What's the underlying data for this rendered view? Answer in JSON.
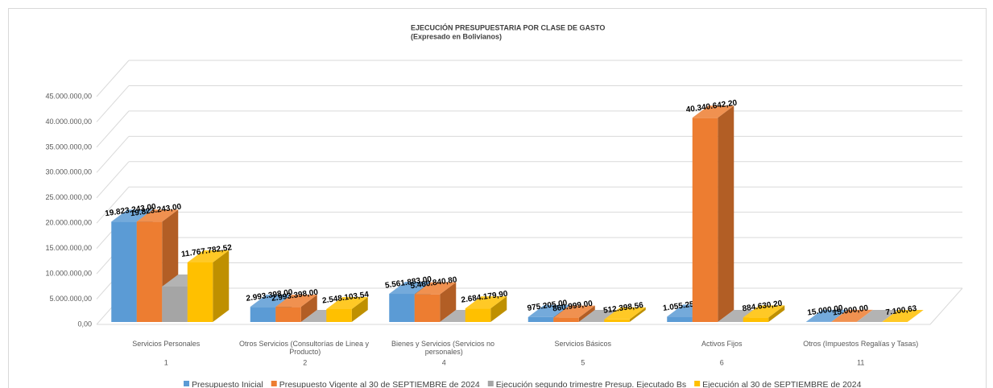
{
  "chart_data": {
    "type": "bar3d",
    "title": "EJECUCIÓN PRESUPUESTARIA POR CLASE DE GASTO",
    "subtitle": "(Expresado en Bolivianos)",
    "categories": [
      "Servicios Personales",
      "Otros Servicios (Consultorías de Linea y Producto)",
      "Bienes y Servicios (Servicios no personales)",
      "Servicios Básicos",
      "Activos Fijos",
      "Otros (Impuestos Regalías y Tasas)"
    ],
    "category_codes": [
      "1",
      "2",
      "4",
      "5",
      "6",
      "11"
    ],
    "series": [
      {
        "name": "Presupuesto Inicial",
        "color": "#5b9bd5",
        "values": [
          19823243.0,
          2993398.0,
          5561883.0,
          975205.0,
          1055255.0,
          15000.0
        ],
        "value_labels": [
          "19.823.243,00",
          "2.993.398,00",
          "5.561.883,00",
          "975.205,00",
          "1.055.255,00",
          "15.000,00"
        ]
      },
      {
        "name": "Presupuesto Vigente al 30 de SEPTIEMBRE de 2024",
        "color": "#ed7d31",
        "values": [
          19823243.0,
          2993398.0,
          5460840.8,
          860999.0,
          40340642.2,
          15000.0
        ],
        "value_labels": [
          "19.823.243,00",
          "2.993.398,00",
          "5.460.840,80",
          "860.999,00",
          "40.340.642,20",
          "15.000,00"
        ]
      },
      {
        "name": "Ejecución segundo trimestre Presup. Ejecutado Bs",
        "color": "#a5a5a5",
        "values": [
          7000000,
          0,
          0,
          0,
          0,
          0
        ]
      },
      {
        "name": "Ejecución al 30 de SEPTIEMBRE de 2024",
        "color": "#ffc000",
        "values": [
          11767782.52,
          2548103.54,
          2684179.9,
          512398.56,
          884630.2,
          7100.63
        ],
        "value_labels": [
          "11.767.782,52",
          "2.548.103,54",
          "2.684.179,90",
          "512.398,56",
          "884.630,20",
          "7.100,63"
        ]
      }
    ],
    "ylim": [
      0,
      45000000
    ],
    "yticks": [
      {
        "value": 0,
        "label": "0,00"
      },
      {
        "value": 5000000,
        "label": "5.000.000,00"
      },
      {
        "value": 10000000,
        "label": "10.000.000,00"
      },
      {
        "value": 15000000,
        "label": "15.000.000,00"
      },
      {
        "value": 20000000,
        "label": "20.000.000,00"
      },
      {
        "value": 25000000,
        "label": "25.000.000,00"
      },
      {
        "value": 30000000,
        "label": "30.000.000,00"
      },
      {
        "value": 35000000,
        "label": "35.000.000,00"
      },
      {
        "value": 40000000,
        "label": "40.000.000,00"
      },
      {
        "value": 45000000,
        "label": "45.000.000,00"
      }
    ],
    "grid": true,
    "legend": "bottom"
  }
}
